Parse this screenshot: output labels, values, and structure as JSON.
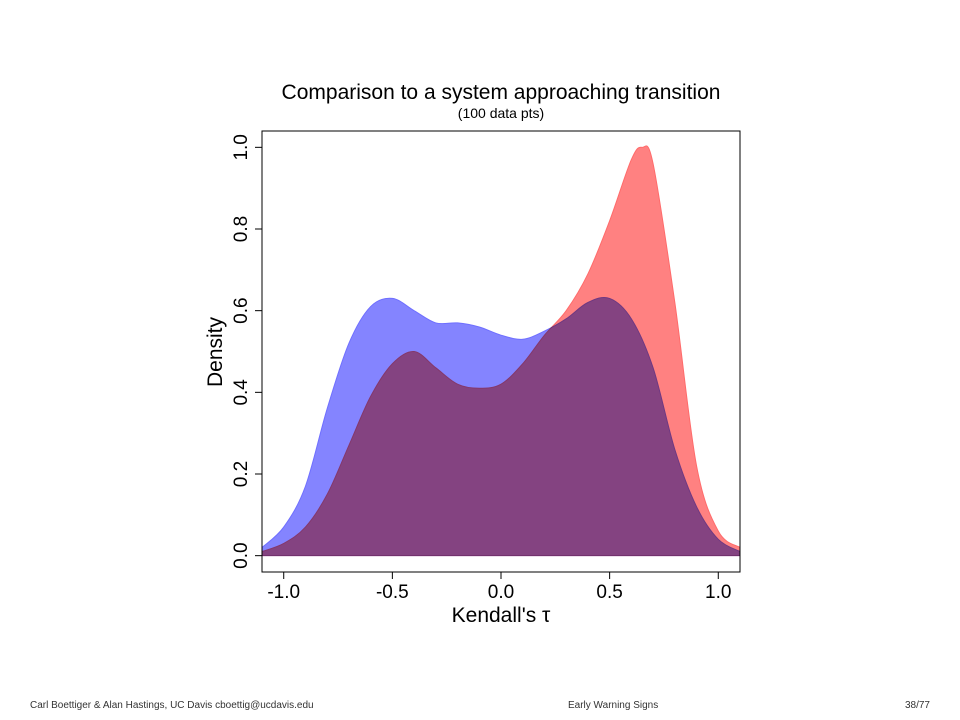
{
  "footer": {
    "left": "Carl Boettiger & Alan Hastings, UC Davis cboettig@ucdavis.edu",
    "center": "Early Warning Signs",
    "right": "38/77"
  },
  "chart_data": {
    "type": "area",
    "title": "Comparison to a system approaching transition",
    "subtitle": "(100 data pts)",
    "xlabel": "Kendall's τ",
    "ylabel": "Density",
    "xlim": [
      -1.1,
      1.1
    ],
    "ylim": [
      -0.04,
      1.04
    ],
    "xticks": [
      -1.0,
      -0.5,
      0.0,
      0.5,
      1.0
    ],
    "xtick_labels": [
      "-1.0",
      "-0.5",
      "0.0",
      "0.5",
      "1.0"
    ],
    "yticks": [
      0.0,
      0.2,
      0.4,
      0.6,
      0.8,
      1.0
    ],
    "ytick_labels": [
      "0.0",
      "0.2",
      "0.4",
      "0.6",
      "0.8",
      "1.0"
    ],
    "grid": false,
    "legend": "none",
    "series": [
      {
        "color": "#6f6fff",
        "x": [
          -1.1,
          -1.0,
          -0.9,
          -0.8,
          -0.7,
          -0.6,
          -0.5,
          -0.4,
          -0.3,
          -0.2,
          -0.1,
          0.0,
          0.1,
          0.2,
          0.3,
          0.4,
          0.5,
          0.6,
          0.7,
          0.8,
          0.9,
          1.0,
          1.1
        ],
        "y": [
          0.02,
          0.07,
          0.17,
          0.36,
          0.52,
          0.61,
          0.63,
          0.6,
          0.57,
          0.57,
          0.56,
          0.54,
          0.53,
          0.55,
          0.58,
          0.62,
          0.63,
          0.58,
          0.46,
          0.26,
          0.12,
          0.04,
          0.01
        ]
      },
      {
        "color": "#ff6b6b",
        "x": [
          -1.1,
          -1.0,
          -0.9,
          -0.8,
          -0.7,
          -0.6,
          -0.5,
          -0.4,
          -0.3,
          -0.2,
          -0.1,
          0.0,
          0.1,
          0.2,
          0.3,
          0.4,
          0.5,
          0.6,
          0.65,
          0.7,
          0.8,
          0.9,
          1.0,
          1.1
        ],
        "y": [
          0.01,
          0.03,
          0.07,
          0.15,
          0.27,
          0.39,
          0.47,
          0.5,
          0.46,
          0.42,
          0.41,
          0.42,
          0.47,
          0.54,
          0.6,
          0.69,
          0.82,
          0.97,
          1.0,
          0.96,
          0.62,
          0.22,
          0.06,
          0.02
        ]
      }
    ]
  }
}
